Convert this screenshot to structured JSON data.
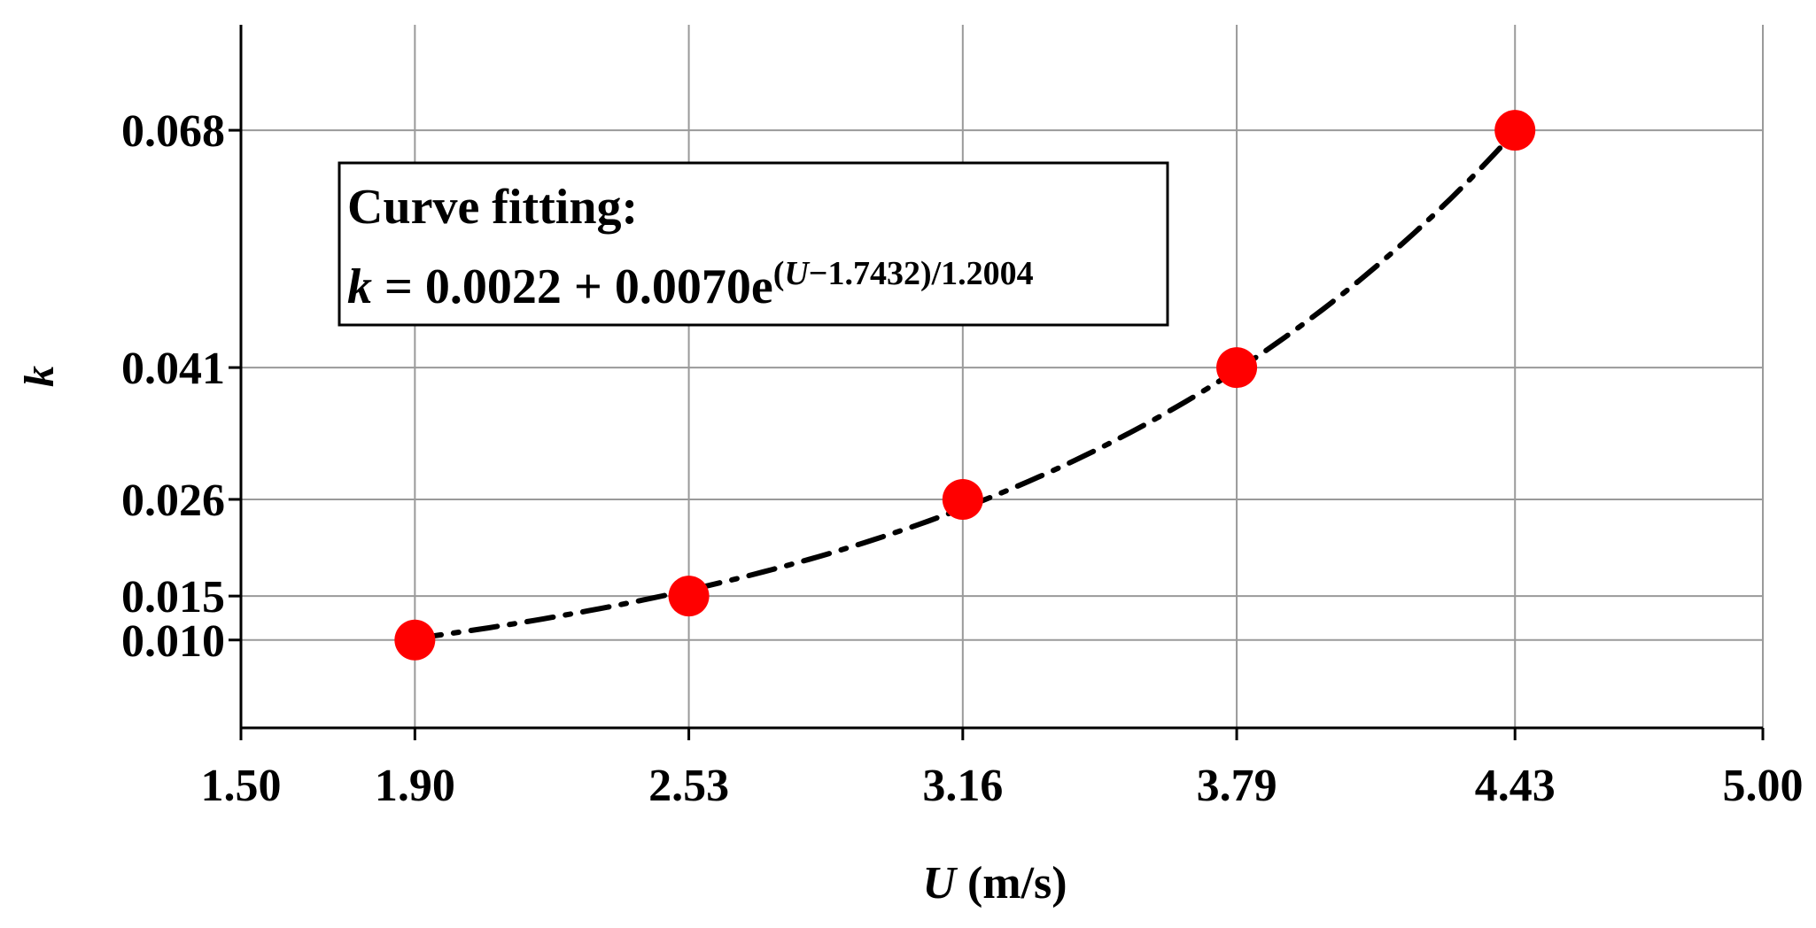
{
  "chart_data": {
    "type": "scatter",
    "xlabel": {
      "variable": "U",
      "unit": " (m/s)"
    },
    "ylabel": "k",
    "xlim": [
      1.5,
      5.0
    ],
    "ylim": [
      0.0,
      0.08
    ],
    "x_ticks": [
      "1.50",
      "1.90",
      "2.53",
      "3.16",
      "3.79",
      "4.43",
      "5.00"
    ],
    "y_ticks": [
      "0.010",
      "0.015",
      "0.026",
      "0.041",
      "0.068"
    ],
    "grid": true,
    "series": [
      {
        "x": [
          1.9,
          2.53,
          3.16,
          3.79,
          4.43
        ],
        "y": [
          0.01,
          0.015,
          0.026,
          0.041,
          0.068
        ],
        "marker_color": "#ff0000"
      }
    ],
    "fit": {
      "formula": "k = 0.0022 + 0.0070e^((U-1.7432)/1.2004)",
      "a": 0.0022,
      "b": 0.007,
      "x0": 1.7432,
      "t": 1.2004,
      "x_range": [
        1.9,
        4.43
      ],
      "line_style": "dash-dot",
      "color": "#000000"
    },
    "annotation": {
      "title": "Curve fitting:",
      "eq_var": "k",
      "eq_main": " = 0.0022 + 0.0070e",
      "eq_exp": "(U−1.7432)/1.2004"
    }
  }
}
